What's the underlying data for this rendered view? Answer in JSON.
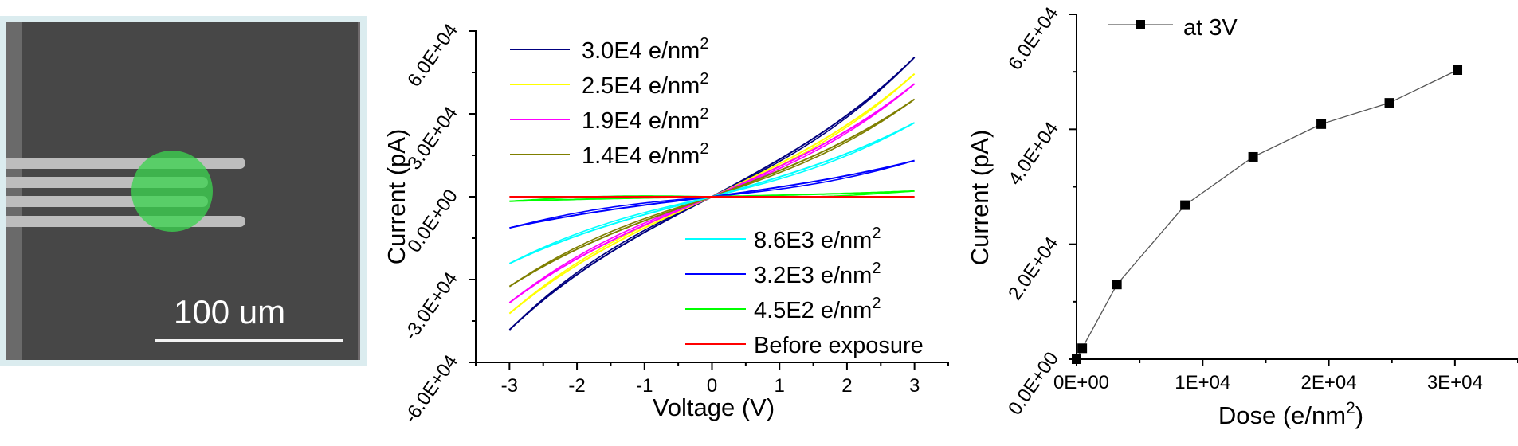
{
  "micrograph": {
    "scale_bar_label": "100 um",
    "spot_color": "#3cd250"
  },
  "chart_data": [
    {
      "type": "line",
      "title": "",
      "xlabel": "Voltage (V)",
      "ylabel": "Current (pA)",
      "xlim": [
        -3.5,
        3.5
      ],
      "ylim": [
        -60000,
        60000
      ],
      "x_ticks": [
        -3,
        -2,
        -1,
        0,
        1,
        2,
        3
      ],
      "x_tick_labels": [
        "-3",
        "-2",
        "-1",
        "0",
        "1",
        "2",
        "3"
      ],
      "y_ticks": [
        -60000,
        -30000,
        0,
        30000,
        60000
      ],
      "y_tick_labels": [
        "-6.0E+04",
        "-3.0E+04",
        "0.0E+00",
        "3.0E+04",
        "6.0E+04"
      ],
      "grid": false,
      "legend_groups": [
        {
          "placement": "top-left",
          "entries": [
            0,
            1,
            2,
            3
          ]
        },
        {
          "placement": "bottom-right",
          "entries": [
            4,
            5,
            6,
            7
          ]
        }
      ],
      "series": [
        {
          "name": "3.0E4 e/nm",
          "sup": "2",
          "color": "#00007f",
          "v_neg3": -48200,
          "v_pos3": 50500
        },
        {
          "name": "2.5E4 e/nm",
          "sup": "2",
          "color": "#ffff00",
          "v_neg3": -42300,
          "v_pos3": 44500
        },
        {
          "name": "1.9E4 e/nm",
          "sup": "2",
          "color": "#ff00ff",
          "v_neg3": -38400,
          "v_pos3": 40900
        },
        {
          "name": "1.4E4 e/nm",
          "sup": "2",
          "color": "#7f7f00",
          "v_neg3": -32500,
          "v_pos3": 35300
        },
        {
          "name": "8.6E3 e/nm",
          "sup": "2",
          "color": "#00ffff",
          "v_neg3": -24200,
          "v_pos3": 26800
        },
        {
          "name": "3.2E3 e/nm",
          "sup": "2",
          "color": "#0000ff",
          "v_neg3": -11300,
          "v_pos3": 13100
        },
        {
          "name": "4.5E2 e/nm",
          "sup": "2",
          "color": "#00ff00",
          "v_neg3": -1650,
          "v_pos3": 2070
        },
        {
          "name": "Before exposure",
          "sup": "",
          "color": "#ff0000",
          "v_neg3": 0,
          "v_pos3": 0
        }
      ]
    },
    {
      "type": "line",
      "title": "",
      "xlabel": "Dose (e/nm",
      "xlabel_sup": "2",
      "xlabel_tail": ")",
      "ylabel": "Current (pA)",
      "xlim": [
        0,
        35000
      ],
      "ylim": [
        0,
        60000
      ],
      "x_ticks": [
        0,
        10000,
        20000,
        30000
      ],
      "x_tick_labels": [
        "0E+00",
        "1E+04",
        "2E+04",
        "3E+04"
      ],
      "y_ticks": [
        0,
        20000,
        40000,
        60000
      ],
      "y_tick_labels": [
        "0.0E+00",
        "2.0E+04",
        "4.0E+04",
        "6.0E+04"
      ],
      "grid": false,
      "legend": {
        "placement": "top-left",
        "entries": [
          "at 3V"
        ]
      },
      "series": [
        {
          "name": "at 3V",
          "color": "#000000",
          "marker": "square",
          "x": [
            0,
            450,
            3200,
            8600,
            14000,
            19400,
            24800,
            30200
          ],
          "y": [
            0,
            1900,
            13000,
            26800,
            35200,
            40900,
            44600,
            50300
          ]
        }
      ]
    }
  ]
}
